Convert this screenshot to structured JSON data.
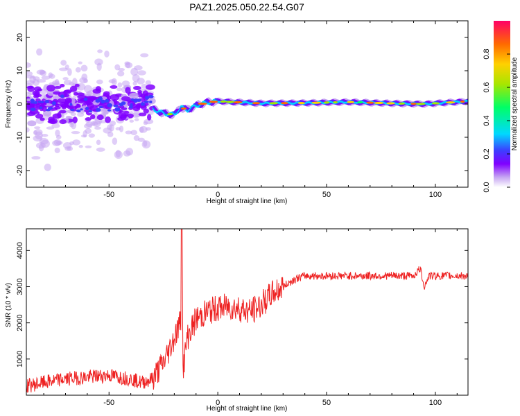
{
  "chart_data": [
    {
      "type": "heatmap",
      "title": "PAZ1.2025.050.22.54.G07",
      "xlabel": "Height of straight line (km)",
      "ylabel": "Frequency (Hz)",
      "xlim": [
        -88,
        115
      ],
      "ylim": [
        -25,
        25
      ],
      "xticks": [
        -50,
        0,
        50,
        100
      ],
      "yticks": [
        -20,
        -10,
        0,
        10,
        20
      ],
      "colorbar": {
        "label": "Normalized spectral amplitude",
        "range": [
          0,
          1
        ],
        "ticks": [
          0.0,
          0.2,
          0.4,
          0.6,
          0.8
        ],
        "tick_labels": [
          "0.0",
          "0.2",
          "0.4",
          "0.6",
          "0.8"
        ],
        "colors": [
          "#ffffff",
          "#c6a6f2",
          "#8000ff",
          "#3d3dff",
          "#00d8ff",
          "#00ff66",
          "#a8e600",
          "#ffd000",
          "#ff6a00",
          "#ff0066"
        ]
      },
      "line_center": [
        {
          "x": -30,
          "f": -1.5
        },
        {
          "x": -25,
          "f": -2.8
        },
        {
          "x": -20,
          "f": -3.2
        },
        {
          "x": -17,
          "f": -1.0
        },
        {
          "x": -14,
          "f": -1.8
        },
        {
          "x": -10,
          "f": -0.5
        },
        {
          "x": -5,
          "f": 0.5
        },
        {
          "x": 0,
          "f": 0.8
        },
        {
          "x": 10,
          "f": 0.5
        },
        {
          "x": 20,
          "f": 0.2
        },
        {
          "x": 40,
          "f": 0.3
        },
        {
          "x": 60,
          "f": 0.6
        },
        {
          "x": 80,
          "f": 0.2
        },
        {
          "x": 95,
          "f": 0.0
        },
        {
          "x": 115,
          "f": 0.8
        }
      ]
    },
    {
      "type": "line",
      "xlabel": "Height of straight line (km)",
      "ylabel": "SNR (10 * v/v)",
      "xlim": [
        -88,
        115
      ],
      "ylim": [
        0,
        4600
      ],
      "xticks": [
        -50,
        0,
        50,
        100
      ],
      "yticks": [
        1000,
        2000,
        3000,
        4000
      ],
      "color": "#ee2222",
      "series": [
        {
          "name": "SNR",
          "x": [
            -88,
            -80,
            -70,
            -60,
            -50,
            -45,
            -40,
            -35,
            -30,
            -25,
            -22,
            -20,
            -18,
            -17,
            -16.5,
            -16,
            -14,
            -10,
            -5,
            0,
            5,
            10,
            15,
            20,
            25,
            30,
            35,
            40,
            50,
            60,
            70,
            80,
            90,
            93,
            95,
            97,
            100,
            110,
            115
          ],
          "y": [
            250,
            350,
            450,
            500,
            550,
            500,
            450,
            350,
            450,
            900,
            1300,
            1600,
            1900,
            2100,
            4600,
            700,
            1600,
            2100,
            2300,
            2400,
            2450,
            2400,
            2300,
            2500,
            2800,
            3000,
            3200,
            3300,
            3300,
            3300,
            3300,
            3300,
            3300,
            3500,
            3000,
            3300,
            3300,
            3300,
            3300
          ]
        }
      ]
    }
  ]
}
